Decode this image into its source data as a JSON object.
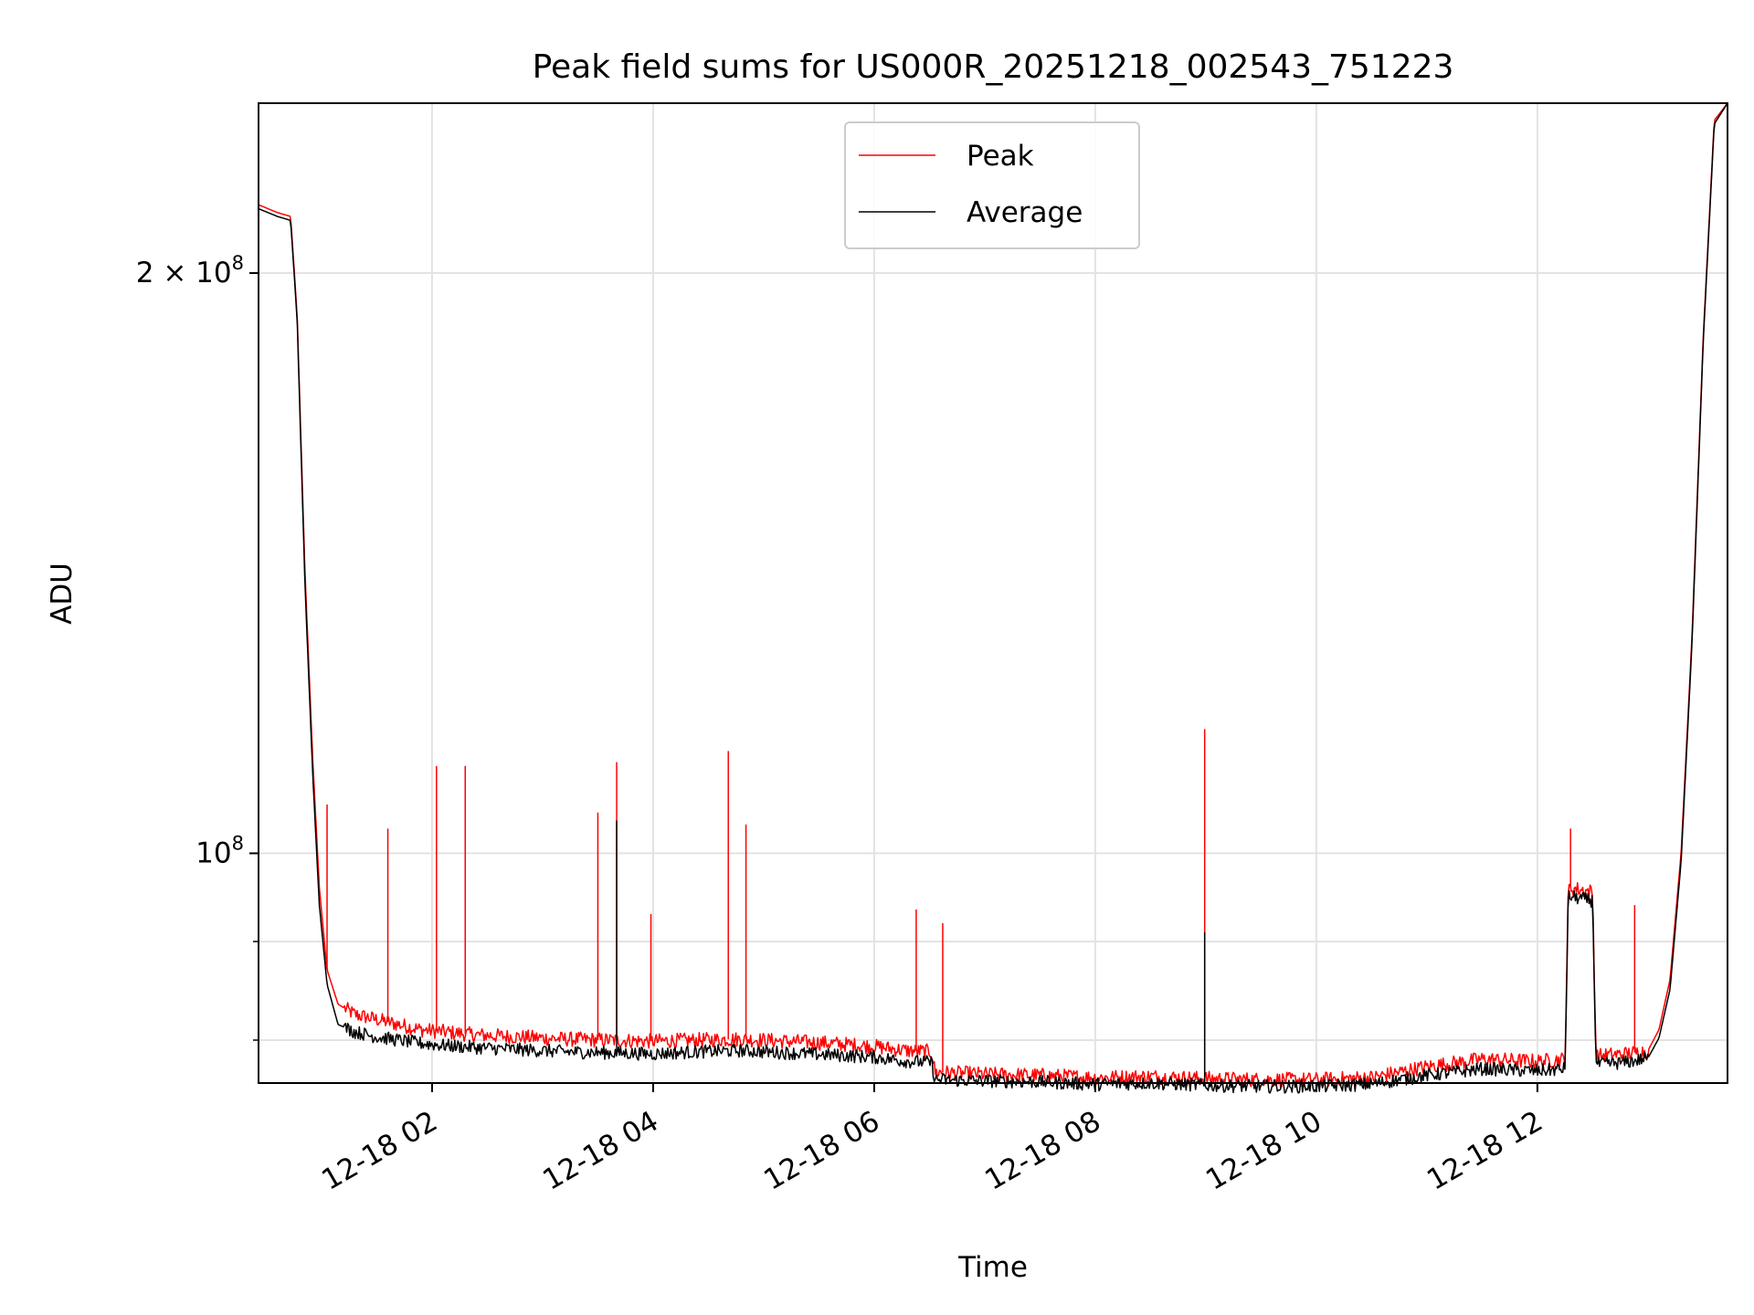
{
  "chart_data": {
    "type": "line",
    "title": "Peak field sums for US000R_20251218_002543_751223",
    "xlabel": "Time",
    "ylabel": "ADU",
    "yscale": "log",
    "grid": true,
    "legend_position": "upper center",
    "xlim_hours": [
      0.43,
      13.72
    ],
    "ylim": [
      76000000,
      245000000
    ],
    "x_ticks": [
      {
        "hour": 2,
        "label": "12-18 02"
      },
      {
        "hour": 4,
        "label": "12-18 04"
      },
      {
        "hour": 6,
        "label": "12-18 06"
      },
      {
        "hour": 8,
        "label": "12-18 08"
      },
      {
        "hour": 10,
        "label": "12-18 10"
      },
      {
        "hour": 12,
        "label": "12-18 12"
      }
    ],
    "y_major_ticks": [
      {
        "value": 100000000,
        "base": "10",
        "exp": "8",
        "mantissa": ""
      },
      {
        "value": 200000000,
        "base": "10",
        "exp": "8",
        "mantissa": "2 × "
      }
    ],
    "y_minor_gridlines": [
      80000000,
      90000000
    ],
    "series": [
      {
        "name": "Peak",
        "color": "#ff0000",
        "x_hours": [
          0.43,
          0.6,
          0.72,
          0.78,
          0.85,
          0.92,
          0.98,
          1.05,
          1.15,
          1.3,
          1.5,
          1.7,
          1.9,
          2.1,
          2.4,
          2.8,
          3.2,
          3.6,
          4.0,
          4.4,
          4.8,
          5.2,
          5.6,
          6.0,
          6.3,
          6.52,
          6.55,
          7.0,
          7.5,
          8.0,
          8.5,
          9.0,
          9.5,
          10.0,
          10.5,
          11.0,
          11.5,
          12.0,
          12.25,
          12.28,
          12.5,
          12.53,
          12.8,
          13.0,
          13.1,
          13.2,
          13.3,
          13.4,
          13.5,
          13.6,
          13.72
        ],
        "values": [
          217000000,
          215000000,
          214000000,
          190000000,
          140000000,
          112000000,
          96000000,
          87000000,
          83500000,
          82500000,
          82000000,
          81500000,
          81000000,
          80800000,
          80500000,
          80300000,
          80100000,
          80000000,
          79900000,
          80000000,
          80100000,
          79900000,
          79700000,
          79400000,
          79000000,
          78900000,
          77000000,
          76800000,
          76700000,
          76500000,
          76600000,
          76400000,
          76300000,
          76300000,
          76500000,
          77500000,
          78200000,
          78000000,
          78200000,
          96000000,
          95500000,
          78500000,
          78700000,
          79000000,
          81000000,
          86000000,
          100000000,
          130000000,
          185000000,
          240000000,
          245000000
        ]
      },
      {
        "name": "Average",
        "color": "#000000",
        "x_hours": [
          0.43,
          0.6,
          0.72,
          0.78,
          0.85,
          0.92,
          0.98,
          1.05,
          1.15,
          1.3,
          1.5,
          1.7,
          1.9,
          2.1,
          2.4,
          2.8,
          3.2,
          3.6,
          4.0,
          4.4,
          4.8,
          5.2,
          5.6,
          6.0,
          6.3,
          6.52,
          6.55,
          7.0,
          7.5,
          8.0,
          8.5,
          9.0,
          9.5,
          10.0,
          10.5,
          11.0,
          11.5,
          12.0,
          12.25,
          12.28,
          12.5,
          12.53,
          12.8,
          13.0,
          13.1,
          13.2,
          13.3,
          13.4,
          13.5,
          13.6,
          13.72
        ],
        "values": [
          216000000,
          214000000,
          213000000,
          189000000,
          138000000,
          110000000,
          94000000,
          85500000,
          81500000,
          80800000,
          80300000,
          80000000,
          79700000,
          79500000,
          79300000,
          79100000,
          78900000,
          78800000,
          78700000,
          78900000,
          79000000,
          78800000,
          78600000,
          78400000,
          78000000,
          77900000,
          76300000,
          76200000,
          76100000,
          75900000,
          76000000,
          75800000,
          75700000,
          75700000,
          75900000,
          76700000,
          77300000,
          77100000,
          77300000,
          95000000,
          94500000,
          77700000,
          77900000,
          78300000,
          80200000,
          85000000,
          99000000,
          129000000,
          184000000,
          239000000,
          245000000
        ]
      }
    ],
    "spikes": [
      {
        "series": "Peak",
        "x_hours": 1.05,
        "value": 106000000
      },
      {
        "series": "Peak",
        "x_hours": 1.6,
        "value": 103000000
      },
      {
        "series": "Peak",
        "x_hours": 2.04,
        "value": 111000000
      },
      {
        "series": "Peak",
        "x_hours": 2.3,
        "value": 111000000
      },
      {
        "series": "Peak",
        "x_hours": 3.5,
        "value": 105000000
      },
      {
        "series": "Peak",
        "x_hours": 3.67,
        "value": 111500000
      },
      {
        "series": "Peak",
        "x_hours": 3.98,
        "value": 93000000
      },
      {
        "series": "Peak",
        "x_hours": 4.68,
        "value": 113000000
      },
      {
        "series": "Peak",
        "x_hours": 4.84,
        "value": 103500000
      },
      {
        "series": "Peak",
        "x_hours": 6.38,
        "value": 93500000
      },
      {
        "series": "Peak",
        "x_hours": 6.62,
        "value": 92000000
      },
      {
        "series": "Peak",
        "x_hours": 8.99,
        "value": 116000000
      },
      {
        "series": "Peak",
        "x_hours": 12.3,
        "value": 103000000
      },
      {
        "series": "Peak",
        "x_hours": 12.88,
        "value": 94000000
      },
      {
        "series": "Average",
        "x_hours": 3.67,
        "value": 104000000
      },
      {
        "series": "Average",
        "x_hours": 8.99,
        "value": 91000000
      }
    ]
  }
}
